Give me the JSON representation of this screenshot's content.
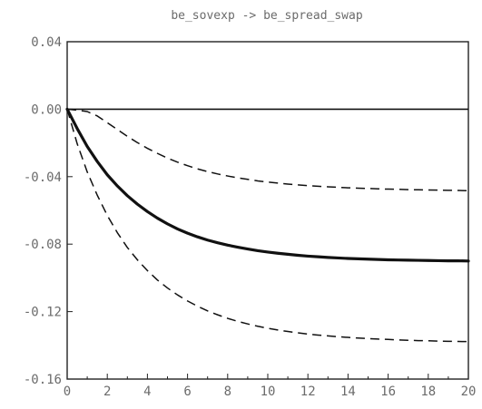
{
  "chart_data": {
    "type": "line",
    "title": "be_sovexp -> be_spread_swap",
    "xlabel": "",
    "ylabel": "",
    "xlim": [
      0,
      20
    ],
    "ylim": [
      -0.16,
      0.04
    ],
    "x_ticks": [
      "0",
      "2",
      "4",
      "6",
      "8",
      "10",
      "12",
      "14",
      "16",
      "18",
      "20"
    ],
    "y_ticks": [
      "0.04",
      "0.00",
      "-0.04",
      "-0.08",
      "-0.12",
      "-0.16"
    ],
    "grid": false,
    "legend": "none",
    "x": [
      0,
      0.5,
      1,
      1.5,
      2,
      2.5,
      3,
      3.5,
      4,
      4.5,
      5,
      5.5,
      6,
      6.5,
      7,
      7.5,
      8,
      8.5,
      9,
      9.5,
      10,
      10.5,
      11,
      11.5,
      12,
      12.5,
      13,
      13.5,
      14,
      14.5,
      15,
      15.5,
      16,
      16.5,
      17,
      17.5,
      18,
      18.5,
      19,
      19.5,
      20
    ],
    "series": [
      {
        "style": "solid",
        "values": [
          0,
          -0.0115,
          -0.0221,
          -0.031,
          -0.0389,
          -0.0455,
          -0.0513,
          -0.0563,
          -0.0607,
          -0.0646,
          -0.068,
          -0.071,
          -0.0735,
          -0.0757,
          -0.0776,
          -0.0792,
          -0.0806,
          -0.0818,
          -0.0829,
          -0.0839,
          -0.0847,
          -0.0854,
          -0.086,
          -0.0866,
          -0.0871,
          -0.0875,
          -0.0879,
          -0.0882,
          -0.0885,
          -0.0887,
          -0.0889,
          -0.0891,
          -0.0893,
          -0.0894,
          -0.0895,
          -0.0896,
          -0.0897,
          -0.0898,
          -0.0899,
          -0.0899,
          -0.09
        ]
      },
      {
        "style": "dashed",
        "values": [
          0,
          -0.0006,
          -0.0014,
          -0.004,
          -0.008,
          -0.012,
          -0.0161,
          -0.0198,
          -0.0232,
          -0.0262,
          -0.029,
          -0.0314,
          -0.0335,
          -0.0354,
          -0.037,
          -0.0384,
          -0.0396,
          -0.0407,
          -0.0416,
          -0.0425,
          -0.0432,
          -0.0438,
          -0.0444,
          -0.0449,
          -0.0453,
          -0.0457,
          -0.046,
          -0.0463,
          -0.0466,
          -0.0468,
          -0.047,
          -0.0472,
          -0.0474,
          -0.0475,
          -0.0477,
          -0.0478,
          -0.0479,
          -0.048,
          -0.0481,
          -0.0482,
          -0.0483
        ]
      },
      {
        "style": "dashed",
        "values": [
          0,
          -0.0205,
          -0.0372,
          -0.051,
          -0.063,
          -0.0732,
          -0.082,
          -0.0893,
          -0.0957,
          -0.1013,
          -0.106,
          -0.1101,
          -0.1137,
          -0.1168,
          -0.1196,
          -0.1219,
          -0.124,
          -0.1258,
          -0.1273,
          -0.1287,
          -0.1299,
          -0.1309,
          -0.1318,
          -0.1326,
          -0.1333,
          -0.1339,
          -0.1344,
          -0.1349,
          -0.1353,
          -0.1357,
          -0.136,
          -0.1363,
          -0.1365,
          -0.1368,
          -0.137,
          -0.1372,
          -0.1373,
          -0.1375,
          -0.1376,
          -0.1377,
          -0.1378
        ]
      }
    ],
    "zero_line": 0
  }
}
